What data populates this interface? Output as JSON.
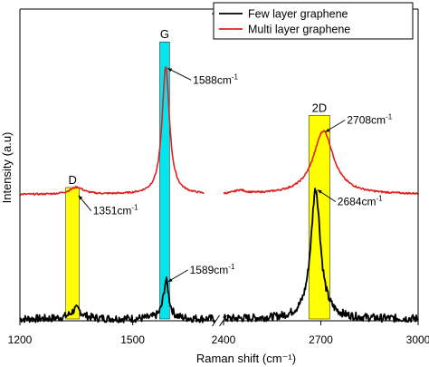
{
  "chart_data": {
    "type": "line",
    "xlabel": "Raman shift (cm⁻¹)",
    "ylabel": "Intensity (a.u)",
    "x_axis_break": true,
    "segments": [
      {
        "xlim": [
          1200,
          1720
        ],
        "ticks": [
          1200,
          1500
        ]
      },
      {
        "xlim": [
          2400,
          3000
        ],
        "ticks": [
          2400,
          2700,
          3000
        ]
      }
    ],
    "ylim": [
      0,
      1
    ],
    "grid": false,
    "legend_position": "top-right",
    "series": [
      {
        "name": "Few layer graphene",
        "color": "#000000",
        "peaks": [
          {
            "center": 1350,
            "height": 0.035,
            "width": 18
          },
          {
            "center": 1589,
            "height": 0.135,
            "width": 9
          },
          {
            "center": 2684,
            "height": 0.46,
            "width": 18
          }
        ],
        "baseline": 0.0,
        "noise": 0.014
      },
      {
        "name": "Multi layer graphene",
        "color": "#e02020",
        "peaks": [
          {
            "center": 1351,
            "height": 0.025,
            "width": 22
          },
          {
            "center": 1588,
            "height": 0.45,
            "width": 12
          },
          {
            "center": 2708,
            "height": 0.225,
            "width": 38
          },
          {
            "center": 2450,
            "height": 0.012,
            "width": 20
          }
        ],
        "baseline": 0.44,
        "noise": 0.003
      }
    ],
    "bands": [
      {
        "label": "D",
        "x0": 1322,
        "x1": 1358,
        "y0": 0,
        "y1": 0.465,
        "color": "#ffff00"
      },
      {
        "label": "G",
        "x0": 1572,
        "x1": 1598,
        "y0": 0,
        "y1": 0.98,
        "color": "#00e5ee"
      },
      {
        "label": "2D",
        "x0": 2663,
        "x1": 2728,
        "y0": 0,
        "y1": 0.72,
        "color": "#ffff00"
      }
    ],
    "annotations": [
      {
        "text": "1588cm",
        "sup": "-1",
        "x": 1588,
        "y": 0.89,
        "series": "Multi layer graphene"
      },
      {
        "text": "1351cm",
        "sup": "-1",
        "x": 1351,
        "y": 0.44,
        "series": "Multi layer graphene"
      },
      {
        "text": "2708cm",
        "sup": "-1",
        "x": 2708,
        "y": 0.665,
        "series": "Multi layer graphene"
      },
      {
        "text": "2684cm",
        "sup": "-1",
        "x": 2684,
        "y": 0.46,
        "series": "Few layer graphene"
      },
      {
        "text": "1589cm",
        "sup": "-1",
        "x": 1589,
        "y": 0.135,
        "series": "Few layer graphene"
      }
    ]
  }
}
